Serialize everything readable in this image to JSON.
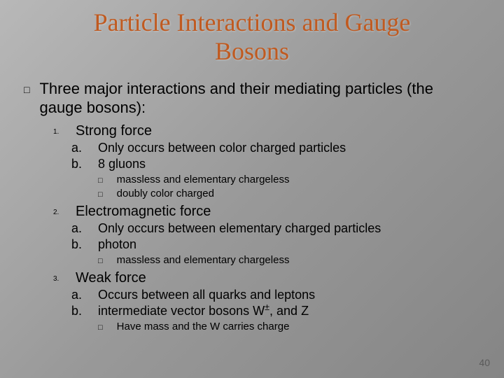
{
  "title_line1": "Particle Interactions and Gauge",
  "title_line2": "Bosons",
  "top_bullet": "Three major interactions and their mediating particles (the gauge bosons):",
  "forces": [
    {
      "num": "1.",
      "name": "Strong force",
      "letters": [
        {
          "m": "a.",
          "t": "Only occurs between color charged particles"
        },
        {
          "m": "b.",
          "t": "8 gluons"
        }
      ],
      "boxes": [
        "massless and elementary chargeless",
        "doubly color charged"
      ]
    },
    {
      "num": "2.",
      "name": "Electromagnetic force",
      "letters": [
        {
          "m": "a.",
          "t": "Only occurs between elementary charged particles"
        },
        {
          "m": "b.",
          "t": "photon"
        }
      ],
      "boxes": [
        "massless and elementary chargeless"
      ]
    },
    {
      "num": "3.",
      "name": "Weak force",
      "letters": [
        {
          "m": "a.",
          "t": "Occurs between all quarks and leptons"
        },
        {
          "m": "b.",
          "t": "intermediate vector bosons W±, and Z"
        }
      ],
      "boxes": [
        "Have mass and the W carries charge"
      ]
    }
  ],
  "page_number": "40",
  "markers": {
    "square_outline": "□",
    "square_filled": "□"
  }
}
